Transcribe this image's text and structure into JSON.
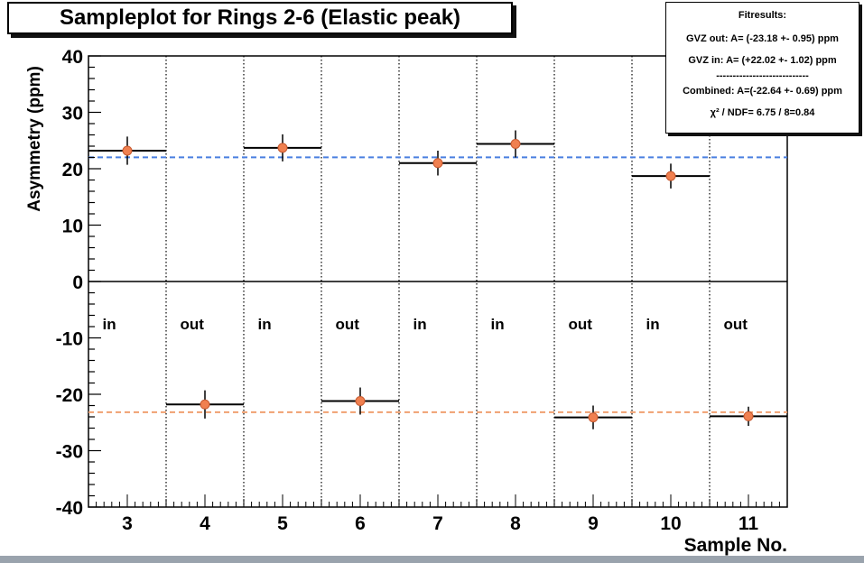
{
  "title": "Sampleplot for Rings 2-6 (Elastic peak)",
  "fit_box": {
    "heading": "Fitresults:",
    "line1": "GVZ out: A= (-23.18 +- 0.95) ppm",
    "line2": "GVZ in:  A= (+22.02 +- 1.02) ppm",
    "separator": "----------------------------",
    "line3": "Combined: A=(-22.64 +- 0.69) ppm",
    "line4": "χ² / NDF= 6.75 / 8=0.84"
  },
  "chart_data": {
    "type": "scatter",
    "xlabel": "Sample No.",
    "ylabel": "Asymmetry (ppm)",
    "xlim": [
      2.5,
      11.5
    ],
    "ylim": [
      -40,
      40
    ],
    "x_ticks": [
      3,
      4,
      5,
      6,
      7,
      8,
      9,
      10,
      11
    ],
    "y_ticks": [
      -40,
      -30,
      -20,
      -10,
      0,
      10,
      20,
      30,
      40
    ],
    "x": [
      3,
      4,
      5,
      6,
      7,
      8,
      9,
      10,
      11
    ],
    "y": [
      23.2,
      -21.8,
      23.7,
      -21.2,
      21.0,
      24.4,
      -24.1,
      18.7,
      -23.9
    ],
    "yerr": [
      2.5,
      2.5,
      2.4,
      2.4,
      2.2,
      2.4,
      2.1,
      2.2,
      1.7
    ],
    "xerr": 0.5,
    "labels": [
      "in",
      "out",
      "in",
      "out",
      "in",
      "in",
      "out",
      "in",
      "out"
    ],
    "label_y": -8.5,
    "fit_lines": [
      {
        "y": 22.02,
        "color": "#4a7fe0"
      },
      {
        "y": -23.18,
        "color": "#f0a070"
      }
    ],
    "zero_line": true,
    "point_color": "#f08050",
    "errorbar_color": "#000000",
    "separators": "dotted vertical lines between samples"
  },
  "colors": {
    "background": "#ffffff",
    "footer": "#9aa3ad"
  }
}
